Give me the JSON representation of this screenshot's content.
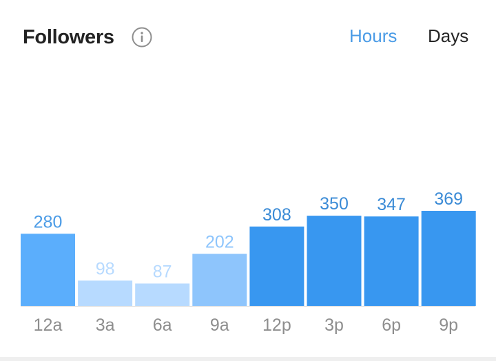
{
  "header": {
    "title": "Followers",
    "info_icon": "info-icon",
    "tabs": [
      {
        "label": "Hours",
        "active": true
      },
      {
        "label": "Days",
        "active": false
      }
    ]
  },
  "colors": {
    "active_tab": "#4a9be6",
    "inactive_tab": "#262626",
    "bar_full": "#3897f0",
    "bar_light": "#8ec5fc",
    "bar_lighter": "#b7daff",
    "axis_label": "#8e8e8e",
    "baseline": "#d8d8d8"
  },
  "chart_data": {
    "type": "bar",
    "categories": [
      "12a",
      "3a",
      "6a",
      "9a",
      "12p",
      "3p",
      "6p",
      "9p"
    ],
    "values": [
      280,
      98,
      87,
      202,
      308,
      350,
      347,
      369
    ],
    "bar_colors": [
      "#5baefc",
      "#b7daff",
      "#b7daff",
      "#8ec5fc",
      "#3897f0",
      "#3897f0",
      "#3897f0",
      "#3897f0"
    ],
    "label_colors": [
      "#4a9be6",
      "#b7daff",
      "#b7daff",
      "#8ec5fc",
      "#3b8bd6",
      "#3b8bd6",
      "#3b8bd6",
      "#3b8bd6"
    ],
    "title": "",
    "xlabel": "",
    "ylabel": "",
    "ylim": [
      0,
      369
    ],
    "grid": false,
    "legend": "none"
  }
}
